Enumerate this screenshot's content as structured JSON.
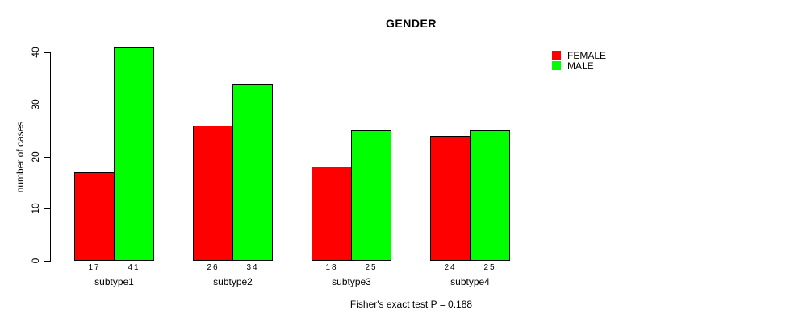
{
  "title": "GENDER",
  "caption": "Fisher's exact test P = 0.188",
  "chart_data": {
    "type": "bar",
    "title": "GENDER",
    "xlabel": "",
    "ylabel": "number of cases",
    "categories": [
      "subtype1",
      "subtype2",
      "subtype3",
      "subtype4"
    ],
    "series": [
      {
        "name": "FEMALE",
        "color": "#ff0000",
        "values": [
          17,
          26,
          18,
          24
        ]
      },
      {
        "name": "MALE",
        "color": "#00ff00",
        "values": [
          41,
          34,
          25,
          25
        ]
      }
    ],
    "ylim": [
      0,
      40
    ],
    "yticks": [
      0,
      10,
      20,
      30,
      40
    ],
    "grid": false,
    "legend_position": "top-right-outside",
    "bar_value_labels": true,
    "annotation": "Fisher's exact test P = 0.188"
  }
}
